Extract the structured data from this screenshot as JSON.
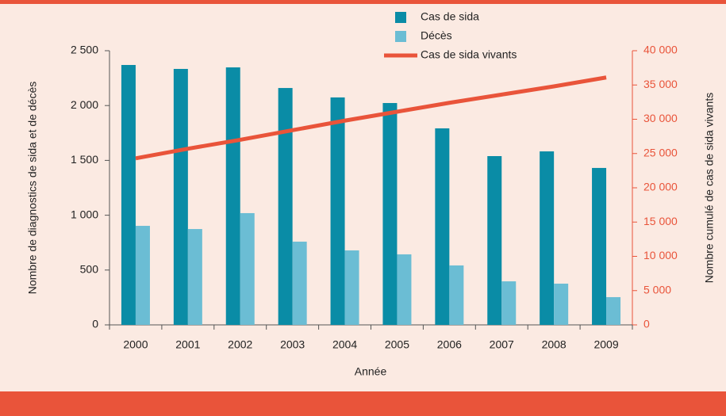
{
  "chart_data": {
    "type": "bar-line",
    "x_label": "Année",
    "y_label": "Nombre de diagnostics de sida et de décès",
    "y2_label": "Nombre cumulé de cas de sida vivants",
    "categories": [
      "2000",
      "2001",
      "2002",
      "2003",
      "2004",
      "2005",
      "2006",
      "2007",
      "2008",
      "2009"
    ],
    "series": [
      {
        "name": "Cas de sida",
        "type": "bar",
        "color": "#0a8ca6",
        "values": [
          2370,
          2334,
          2348,
          2160,
          2074,
          2023,
          1792,
          1539,
          1582,
          1431
        ]
      },
      {
        "name": "Décès",
        "type": "bar",
        "color": "#6bbdd4",
        "values": [
          903,
          874,
          1019,
          759,
          679,
          643,
          542,
          397,
          376,
          253
        ]
      },
      {
        "name": "Cas de sida vivants",
        "type": "line",
        "axis": "y2",
        "color": "#e9543a",
        "values": [
          24300,
          25700,
          27000,
          28400,
          29800,
          31100,
          32400,
          33600,
          34800,
          36100
        ]
      }
    ],
    "ylim": [
      0,
      2500
    ],
    "yticks": [
      0,
      500,
      {
        "value": 1000,
        "label": "1 000"
      },
      {
        "value": 1500,
        "label": "1 500"
      },
      {
        "value": 2000,
        "label": "2 000"
      },
      {
        "value": 2500,
        "label": "2 500"
      }
    ],
    "y2lim": [
      0,
      40000
    ],
    "y2ticks": [
      0,
      {
        "value": 5000,
        "label": "5 000"
      },
      {
        "value": 10000,
        "label": "10 000"
      },
      {
        "value": 15000,
        "label": "15 000"
      },
      {
        "value": 20000,
        "label": "20 000"
      },
      {
        "value": 25000,
        "label": "25 000"
      },
      {
        "value": 30000,
        "label": "30 000"
      },
      {
        "value": 35000,
        "label": "35 000"
      },
      {
        "value": 40000,
        "label": "40 000"
      }
    ],
    "y2_color": "#e9543a"
  }
}
